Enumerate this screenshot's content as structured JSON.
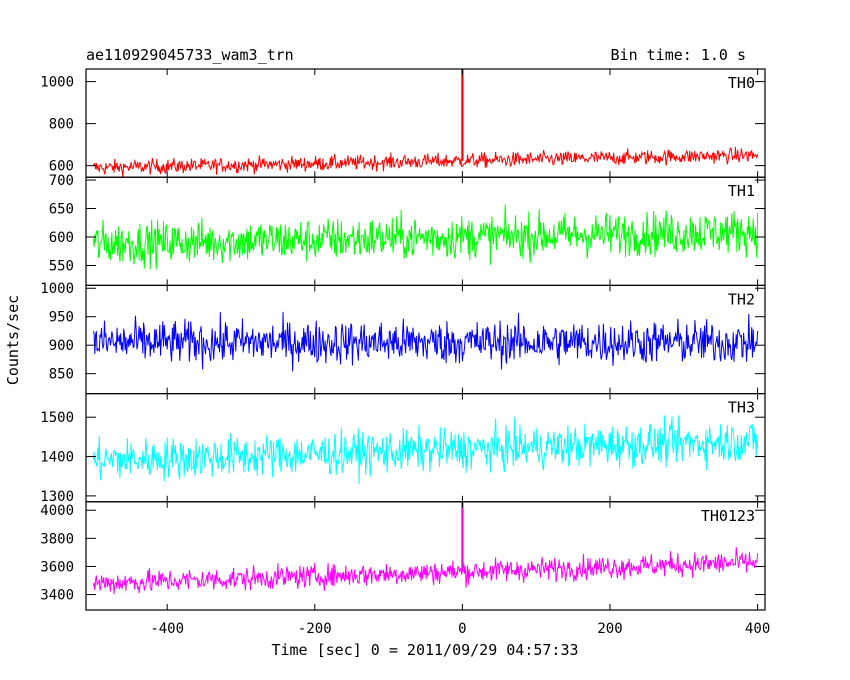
{
  "header": {
    "title": "ae110929045733_wam3_trn",
    "bin_time": "Bin time: 1.0 s"
  },
  "axes": {
    "ylabel": "Counts/sec",
    "xlabel": "Time [sec] 0 = 2011/09/29 04:57:33"
  },
  "chart_data": {
    "type": "line",
    "title": "ae110929045733_wam3_trn",
    "xlabel": "Time [sec] 0 = 2011/09/29 04:57:33",
    "ylabel": "Counts/sec",
    "xlim": [
      -510,
      410
    ],
    "x_ticks": [
      -400,
      -200,
      0,
      200,
      400
    ],
    "x_range": [
      -500,
      400
    ],
    "series": [
      {
        "name": "TH0",
        "color": "#ff0000",
        "ylim": [
          545,
          1060
        ],
        "y_ticks": [
          600,
          800,
          1000
        ],
        "start_mean": 590,
        "end_mean": 650,
        "noise": 30,
        "spike": {
          "x": 0,
          "y": 1060
        }
      },
      {
        "name": "TH1",
        "color": "#00ff00",
        "ylim": [
          515,
          705
        ],
        "y_ticks": [
          550,
          600,
          650,
          700
        ],
        "start_mean": 588,
        "end_mean": 610,
        "noise": 32,
        "spike": null
      },
      {
        "name": "TH2",
        "color": "#0000ff",
        "ylim": [
          815,
          1005
        ],
        "y_ticks": [
          850,
          900,
          950,
          1000
        ],
        "start_mean": 905,
        "end_mean": 905,
        "noise": 32,
        "spike": null
      },
      {
        "name": "TH3",
        "color": "#00ffff",
        "ylim": [
          1285,
          1560
        ],
        "y_ticks": [
          1300,
          1400,
          1500
        ],
        "start_mean": 1390,
        "end_mean": 1440,
        "noise": 45,
        "spike": null
      },
      {
        "name": "TH0123",
        "color": "#ff00ff",
        "ylim": [
          3290,
          4060
        ],
        "y_ticks": [
          3400,
          3600,
          3800,
          4000
        ],
        "start_mean": 3480,
        "end_mean": 3630,
        "noise": 70,
        "spike": {
          "x": 0,
          "y": 4060
        }
      }
    ]
  }
}
